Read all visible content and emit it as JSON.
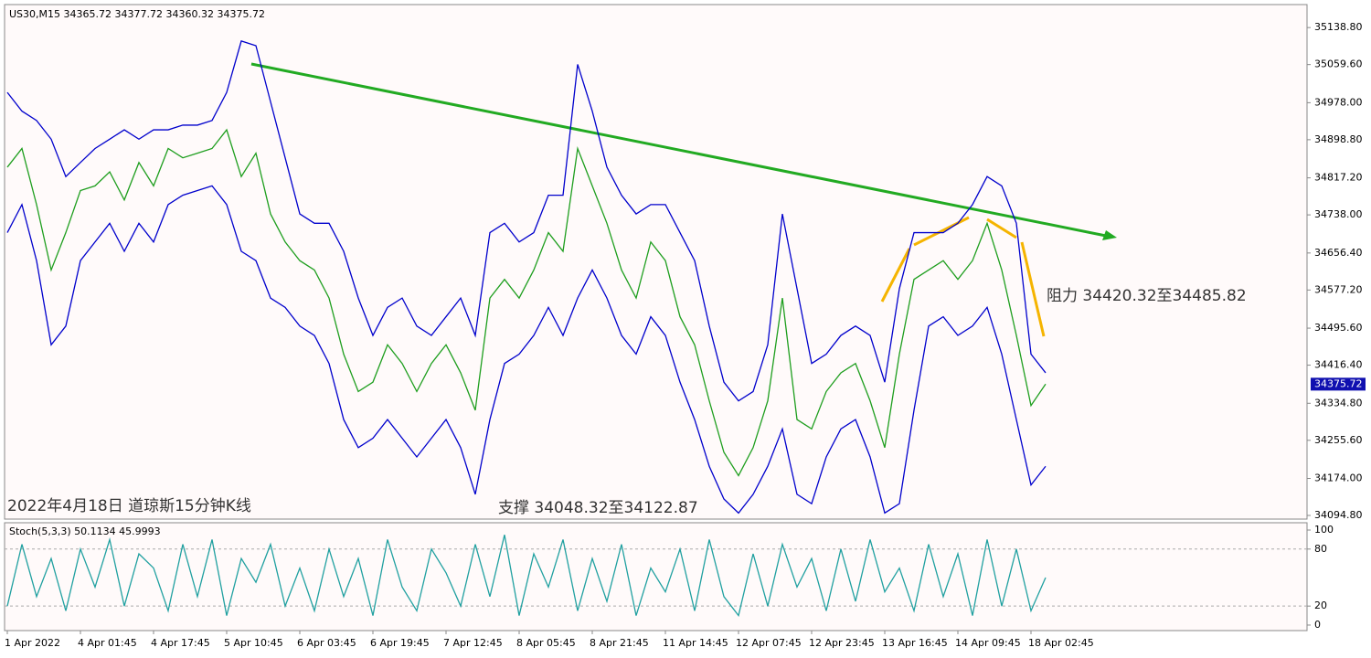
{
  "chart_data": [
    {
      "type": "line",
      "title": "US30,M15  34365.72 34377.72 34360.32 34375.72",
      "categories": [
        "1 Apr 2022",
        null,
        null,
        null,
        null,
        "4 Apr 01:45",
        null,
        null,
        null,
        null,
        "4 Apr 17:45",
        null,
        null,
        null,
        null,
        "5 Apr 10:45",
        null,
        null,
        null,
        null,
        "6 Apr 03:45",
        null,
        null,
        null,
        null,
        "6 Apr 19:45",
        null,
        null,
        null,
        null,
        "7 Apr 12:45",
        null,
        null,
        null,
        null,
        "8 Apr 05:45",
        null,
        null,
        null,
        null,
        "8 Apr 21:45",
        null,
        null,
        null,
        null,
        "11 Apr 14:45",
        null,
        null,
        null,
        null,
        "12 Apr 07:45",
        null,
        null,
        null,
        null,
        "12 Apr 23:45",
        null,
        null,
        null,
        null,
        "13 Apr 16:45",
        null,
        null,
        null,
        null,
        "14 Apr 09:45",
        null,
        null,
        null,
        null,
        "18 Apr 02:45",
        null
      ],
      "series": [
        {
          "color": "#0000cc",
          "values": [
            35000,
            34960,
            34940,
            34900,
            34820,
            34850,
            34880,
            34900,
            34920,
            34900,
            34920,
            34920,
            34930,
            34930,
            34940,
            35000,
            35110,
            35100,
            34980,
            34860,
            34740,
            34720,
            34720,
            34660,
            34560,
            34480,
            34540,
            34560,
            34500,
            34480,
            34520,
            34560,
            34480,
            34700,
            34720,
            34680,
            34700,
            34780,
            34780,
            35060,
            34960,
            34840,
            34780,
            34740,
            34760,
            34760,
            34700,
            34640,
            34500,
            34380,
            34340,
            34360,
            34460,
            34740,
            34580,
            34420,
            34440,
            34480,
            34500,
            34480,
            34380,
            34580,
            34700,
            34700,
            34700,
            34720,
            34760,
            34820,
            34800,
            34720,
            34440,
            34400
          ]
        },
        {
          "color": "#0000cc",
          "values": [
            34700,
            34760,
            34640,
            34460,
            34500,
            34640,
            34680,
            34720,
            34660,
            34720,
            34680,
            34760,
            34780,
            34790,
            34800,
            34760,
            34660,
            34640,
            34560,
            34540,
            34500,
            34480,
            34420,
            34300,
            34240,
            34260,
            34300,
            34260,
            34220,
            34260,
            34300,
            34240,
            34140,
            34300,
            34420,
            34440,
            34480,
            34540,
            34480,
            34560,
            34620,
            34560,
            34480,
            34440,
            34520,
            34480,
            34380,
            34300,
            34200,
            34130,
            34100,
            34140,
            34200,
            34280,
            34140,
            34120,
            34220,
            34280,
            34300,
            34220,
            34100,
            34120,
            34320,
            34500,
            34520,
            34480,
            34500,
            34540,
            34440,
            34300,
            34160,
            34200
          ]
        },
        {
          "color": "#1e9e1e",
          "values": [
            34840,
            34880,
            34760,
            34620,
            34700,
            34790,
            34800,
            34830,
            34770,
            34850,
            34800,
            34880,
            34860,
            34870,
            34880,
            34920,
            34820,
            34870,
            34740,
            34680,
            34640,
            34620,
            34560,
            34440,
            34360,
            34380,
            34460,
            34420,
            34360,
            34420,
            34460,
            34400,
            34320,
            34560,
            34600,
            34560,
            34620,
            34700,
            34660,
            34880,
            34800,
            34720,
            34620,
            34560,
            34680,
            34640,
            34520,
            34460,
            34340,
            34230,
            34180,
            34240,
            34340,
            34560,
            34300,
            34280,
            34360,
            34400,
            34420,
            34340,
            34240,
            34440,
            34600,
            34620,
            34640,
            34600,
            34640,
            34720,
            34620,
            34480,
            34330,
            34376
          ]
        }
      ],
      "ylim": [
        34087,
        35188
      ],
      "yticks": [
        {
          "value": 35138.8,
          "label": "35138.80"
        },
        {
          "value": 35059.6,
          "label": "35059.60"
        },
        {
          "value": 34978,
          "label": "34978.00"
        },
        {
          "value": 34898.8,
          "label": "34898.80"
        },
        {
          "value": 34817.2,
          "label": "34817.20"
        },
        {
          "value": 34738,
          "label": "34738.00"
        },
        {
          "value": 34656.4,
          "label": "34656.40"
        },
        {
          "value": 34577.2,
          "label": "34577.20"
        },
        {
          "value": 34495.6,
          "label": "34495.60"
        },
        {
          "value": 34416.4,
          "label": "34416.40"
        },
        {
          "value": 34334.8,
          "label": "34334.80"
        },
        {
          "value": 34255.6,
          "label": "34255.60"
        },
        {
          "value": 34174,
          "label": "34174.00"
        },
        {
          "value": 34094.8,
          "label": "34094.80"
        }
      ],
      "last_price": 34375.72,
      "annotations": [
        "阻力 34420.32至34485.82",
        "支撑 34048.32至34122.87",
        "2022年4月18日 道琼斯15分钟K线"
      ]
    },
    {
      "type": "line",
      "title": "Stoch(5,3,3) 50.1134 45.9993",
      "series": [
        {
          "color": "#20a0a0",
          "values": [
            20,
            85,
            30,
            70,
            15,
            80,
            40,
            90,
            20,
            75,
            60,
            15,
            85,
            30,
            90,
            10,
            70,
            45,
            85,
            20,
            60,
            15,
            80,
            30,
            70,
            10,
            90,
            40,
            15,
            80,
            55,
            20,
            85,
            30,
            95,
            10,
            75,
            40,
            90,
            15,
            70,
            25,
            85,
            10,
            60,
            35,
            80,
            15,
            90,
            30,
            10,
            75,
            20,
            85,
            40,
            70,
            15,
            80,
            25,
            90,
            35,
            60,
            15,
            85,
            30,
            75,
            10,
            90,
            20,
            80,
            15,
            50
          ]
        }
      ],
      "ylim": [
        -5.8,
        107.7
      ],
      "yticks": [
        0,
        20,
        80,
        100
      ]
    }
  ]
}
